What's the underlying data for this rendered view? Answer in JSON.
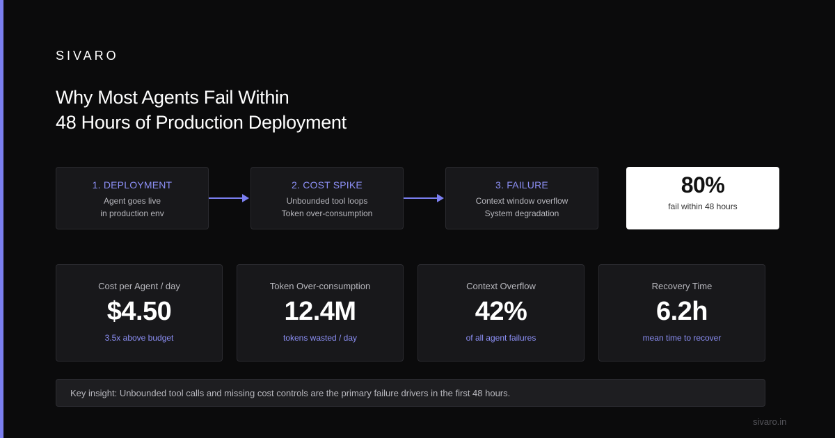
{
  "colors": {
    "accent": "#7b7ff0",
    "background": "#0b0b0c",
    "card": "#18181b",
    "highlight_card": "#ffffff"
  },
  "brand": "SIVARO",
  "title": {
    "line1": "Why Most Agents Fail Within",
    "line2": "48 Hours of Production Deployment"
  },
  "steps": [
    {
      "title": "1. DEPLOYMENT",
      "line1": "Agent goes live",
      "line2": "in production env"
    },
    {
      "title": "2. COST SPIKE",
      "line1": "Unbounded tool loops",
      "line2": "Token over-consumption"
    },
    {
      "title": "3. FAILURE",
      "line1": "Context window overflow",
      "line2": "System degradation"
    }
  ],
  "highlight": {
    "value": "80%",
    "label": "fail within 48 hours"
  },
  "metrics": [
    {
      "label": "Cost per Agent / day",
      "value": "$4.50",
      "note": "3.5x above budget"
    },
    {
      "label": "Token Over-consumption",
      "value": "12.4M",
      "note": "tokens wasted / day"
    },
    {
      "label": "Context Overflow",
      "value": "42%",
      "note": "of all agent failures"
    },
    {
      "label": "Recovery Time",
      "value": "6.2h",
      "note": "mean time to recover"
    }
  ],
  "insight": "Key insight: Unbounded tool calls and missing cost controls are the primary failure drivers in the first 48 hours.",
  "footer_url": "sivaro.in"
}
